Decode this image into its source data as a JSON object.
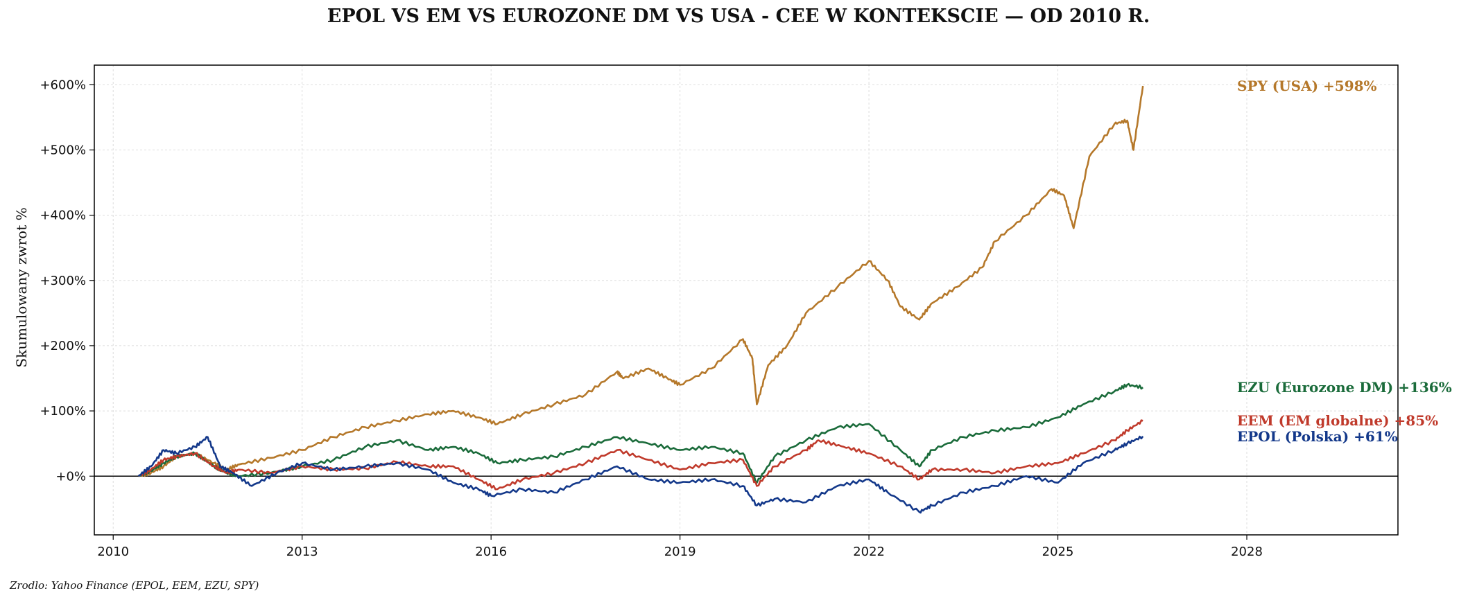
{
  "title": "EPOL VS EM VS EUROZONE DM VS USA - CEE W KONTEKSCIE — OD 2010 R.",
  "source": "Zrodlo: Yahoo Finance (EPOL, EEM, EZU, SPY)",
  "chart_data": {
    "type": "line",
    "title": "EPOL VS EM VS EUROZONE DM VS USA - CEE W KONTEKSCIE — OD 2010 R.",
    "xlabel": "",
    "ylabel": "Skumulowany zwrot %",
    "xlim": [
      2009.7,
      2030.4
    ],
    "ylim": [
      -90,
      630
    ],
    "x_ticks": [
      2010,
      2013,
      2016,
      2019,
      2022,
      2025,
      2028
    ],
    "x_tick_labels": [
      "2010",
      "2013",
      "2016",
      "2019",
      "2022",
      "2025",
      "2028"
    ],
    "y_ticks": [
      0,
      100,
      200,
      300,
      400,
      500,
      600
    ],
    "y_tick_labels": [
      "+0%",
      "+100%",
      "+200%",
      "+300%",
      "+400%",
      "+500%",
      "+600%"
    ],
    "grid": true,
    "zero_line": true,
    "legend": "end-of-line labels",
    "series": [
      {
        "name": "SPY (USA)",
        "end_label": "SPY (USA)  +598%",
        "color": "#b5782a",
        "x": [
          2010.4,
          2010.6,
          2010.8,
          2011.0,
          2011.3,
          2011.6,
          2011.8,
          2012.0,
          2012.5,
          2013.0,
          2013.5,
          2014.0,
          2014.5,
          2015.0,
          2015.4,
          2015.8,
          2016.1,
          2016.5,
          2017.0,
          2017.5,
          2018.0,
          2018.1,
          2018.5,
          2018.8,
          2019.0,
          2019.5,
          2020.0,
          2020.15,
          2020.22,
          2020.4,
          2020.7,
          2021.0,
          2021.5,
          2022.0,
          2022.3,
          2022.5,
          2022.8,
          2023.0,
          2023.4,
          2023.8,
          2024.0,
          2024.5,
          2024.9,
          2025.1,
          2025.25,
          2025.5,
          2025.9,
          2026.1,
          2026.2,
          2026.35
        ],
        "y": [
          0,
          5,
          15,
          30,
          35,
          20,
          10,
          18,
          28,
          40,
          60,
          75,
          85,
          95,
          100,
          90,
          80,
          95,
          110,
          125,
          160,
          150,
          165,
          150,
          140,
          165,
          210,
          180,
          110,
          170,
          200,
          250,
          290,
          330,
          300,
          260,
          240,
          265,
          290,
          320,
          360,
          400,
          440,
          430,
          380,
          490,
          540,
          545,
          500,
          598
        ]
      },
      {
        "name": "EZU (Eurozone DM)",
        "end_label": "EZU (Eurozone DM)  +136%",
        "color": "#1a6b3a",
        "x": [
          2010.4,
          2010.6,
          2010.8,
          2011.0,
          2011.3,
          2011.6,
          2011.8,
          2012.0,
          2012.5,
          2013.0,
          2013.5,
          2014.0,
          2014.5,
          2015.0,
          2015.4,
          2015.8,
          2016.1,
          2016.5,
          2017.0,
          2017.5,
          2018.0,
          2018.5,
          2019.0,
          2019.5,
          2020.0,
          2020.22,
          2020.5,
          2021.0,
          2021.5,
          2022.0,
          2022.5,
          2022.8,
          2023.0,
          2023.5,
          2024.0,
          2024.5,
          2025.0,
          2025.4,
          2025.9,
          2026.1,
          2026.35
        ],
        "y": [
          0,
          8,
          20,
          30,
          35,
          15,
          5,
          0,
          5,
          15,
          25,
          45,
          55,
          40,
          45,
          35,
          20,
          25,
          30,
          45,
          60,
          50,
          40,
          45,
          35,
          -10,
          30,
          55,
          75,
          80,
          40,
          15,
          40,
          60,
          70,
          75,
          90,
          110,
          130,
          140,
          136
        ]
      },
      {
        "name": "EEM (EM globalne)",
        "end_label": "EEM (EM globalne)  +85%",
        "color": "#c03a2b",
        "x": [
          2010.4,
          2010.6,
          2010.8,
          2011.0,
          2011.3,
          2011.6,
          2011.8,
          2012.0,
          2012.5,
          2013.0,
          2013.5,
          2014.0,
          2014.5,
          2015.0,
          2015.4,
          2015.8,
          2016.1,
          2016.5,
          2017.0,
          2017.5,
          2018.0,
          2018.5,
          2019.0,
          2019.5,
          2020.0,
          2020.22,
          2020.5,
          2021.0,
          2021.2,
          2021.6,
          2022.0,
          2022.5,
          2022.8,
          2023.0,
          2023.5,
          2024.0,
          2024.5,
          2025.0,
          2025.4,
          2025.9,
          2026.1,
          2026.35
        ],
        "y": [
          0,
          10,
          25,
          30,
          35,
          15,
          5,
          10,
          5,
          15,
          10,
          12,
          22,
          15,
          15,
          -5,
          -20,
          -5,
          5,
          20,
          40,
          25,
          10,
          20,
          25,
          -15,
          15,
          40,
          55,
          45,
          35,
          15,
          -5,
          10,
          10,
          5,
          15,
          20,
          35,
          55,
          70,
          85
        ]
      },
      {
        "name": "EPOL (Polska)",
        "end_label": "EPOL (Polska)  +61%",
        "color": "#13388a",
        "x": [
          2010.4,
          2010.6,
          2010.8,
          2011.0,
          2011.3,
          2011.5,
          2011.7,
          2011.9,
          2012.2,
          2012.6,
          2013.0,
          2013.5,
          2014.0,
          2014.5,
          2015.0,
          2015.4,
          2015.8,
          2016.0,
          2016.5,
          2017.0,
          2017.5,
          2018.0,
          2018.5,
          2019.0,
          2019.5,
          2020.0,
          2020.22,
          2020.5,
          2021.0,
          2021.5,
          2022.0,
          2022.3,
          2022.8,
          2023.0,
          2023.5,
          2024.0,
          2024.5,
          2025.0,
          2025.4,
          2025.9,
          2026.1,
          2026.35
        ],
        "y": [
          0,
          15,
          40,
          35,
          45,
          60,
          15,
          5,
          -15,
          5,
          20,
          10,
          15,
          20,
          10,
          -10,
          -20,
          -30,
          -20,
          -25,
          -5,
          15,
          -5,
          -10,
          -5,
          -15,
          -45,
          -35,
          -40,
          -15,
          -5,
          -25,
          -55,
          -45,
          -25,
          -15,
          0,
          -10,
          20,
          40,
          50,
          61
        ]
      }
    ]
  }
}
